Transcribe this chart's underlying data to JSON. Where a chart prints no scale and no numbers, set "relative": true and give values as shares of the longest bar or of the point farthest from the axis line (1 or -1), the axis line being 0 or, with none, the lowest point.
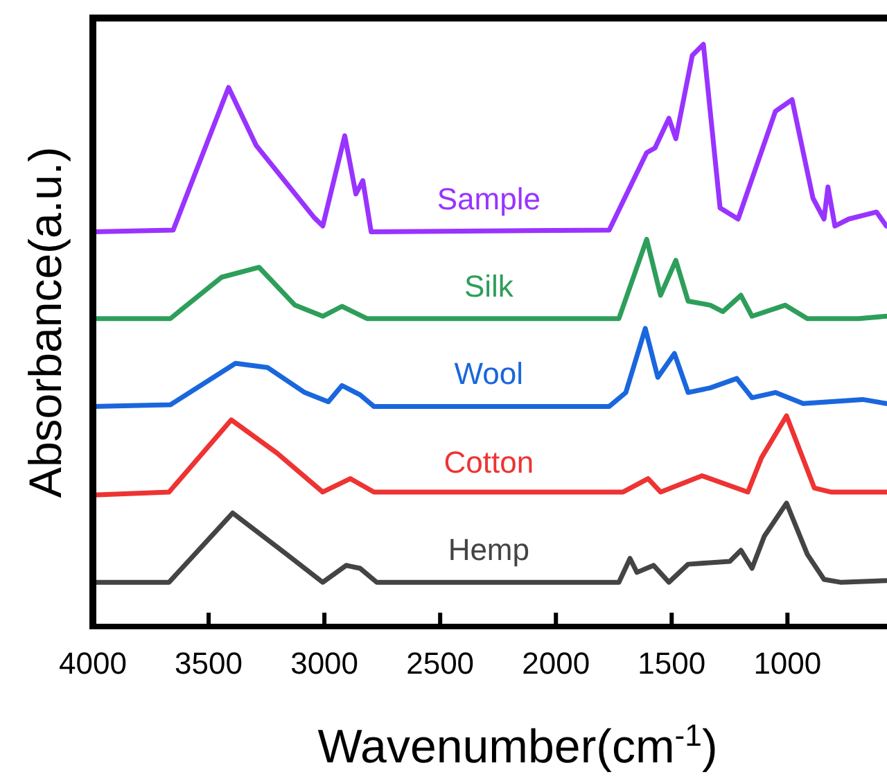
{
  "chart_data": {
    "type": "line",
    "relative": true,
    "xlabel": "Wavenumber(cm$^{-1}$)",
    "ylabel": "Absorbance(a.u.)",
    "xlim": [
      4000,
      570
    ],
    "xticks": [
      4000,
      3500,
      3000,
      2500,
      2000,
      1500,
      1000
    ],
    "grid": false,
    "series": [
      {
        "name": "Sample",
        "color": "#9933ff",
        "x": [
          4000,
          3653,
          3414,
          3294,
          3043,
          3007,
          2912,
          2864,
          2834,
          2798,
          1770,
          1608,
          1572,
          1512,
          1482,
          1411,
          1363,
          1291,
          1213,
          1052,
          980,
          890,
          842,
          825,
          795,
          735,
          615,
          573
        ],
        "values": [
          0.678,
          0.681,
          0.926,
          0.826,
          0.702,
          0.688,
          0.843,
          0.743,
          0.766,
          0.678,
          0.681,
          0.814,
          0.822,
          0.873,
          0.838,
          0.981,
          1.0,
          0.719,
          0.7,
          0.885,
          0.905,
          0.736,
          0.7,
          0.755,
          0.688,
          0.7,
          0.712,
          0.688
        ]
      },
      {
        "name": "Silk",
        "color": "#2e9e5b",
        "x": [
          4000,
          3665,
          3444,
          3282,
          3127,
          3007,
          2924,
          2816,
          1728,
          1608,
          1548,
          1482,
          1429,
          1333,
          1279,
          1201,
          1153,
          1010,
          914,
          693,
          573
        ],
        "values": [
          0.529,
          0.529,
          0.6,
          0.617,
          0.552,
          0.533,
          0.55,
          0.529,
          0.529,
          0.665,
          0.569,
          0.629,
          0.559,
          0.552,
          0.541,
          0.569,
          0.533,
          0.552,
          0.529,
          0.529,
          0.533
        ]
      },
      {
        "name": "Wool",
        "color": "#1a66dd",
        "x": [
          4000,
          3665,
          3384,
          3246,
          3085,
          2983,
          2924,
          2846,
          2786,
          1770,
          1698,
          1614,
          1560,
          1488,
          1429,
          1333,
          1219,
          1153,
          1052,
          932,
          675,
          573
        ],
        "values": [
          0.378,
          0.381,
          0.452,
          0.445,
          0.402,
          0.386,
          0.414,
          0.398,
          0.378,
          0.378,
          0.402,
          0.512,
          0.428,
          0.469,
          0.402,
          0.41,
          0.426,
          0.393,
          0.402,
          0.383,
          0.39,
          0.383
        ]
      },
      {
        "name": "Cotton",
        "color": "#ee3333",
        "x": [
          4000,
          3671,
          3402,
          3205,
          3007,
          2888,
          2786,
          1710,
          1602,
          1548,
          1369,
          1171,
          1112,
          1004,
          884,
          813,
          573
        ],
        "values": [
          0.226,
          0.231,
          0.355,
          0.298,
          0.231,
          0.254,
          0.231,
          0.231,
          0.254,
          0.231,
          0.259,
          0.231,
          0.29,
          0.362,
          0.238,
          0.231,
          0.231
        ]
      },
      {
        "name": "Hemp",
        "color": "#444444",
        "x": [
          4000,
          3671,
          3396,
          3163,
          3007,
          2906,
          2846,
          2774,
          1728,
          1680,
          1650,
          1578,
          1512,
          1429,
          1249,
          1201,
          1153,
          1100,
          1004,
          914,
          842,
          771,
          573
        ],
        "values": [
          0.076,
          0.076,
          0.195,
          0.124,
          0.076,
          0.105,
          0.1,
          0.076,
          0.076,
          0.117,
          0.093,
          0.105,
          0.076,
          0.107,
          0.112,
          0.131,
          0.1,
          0.155,
          0.212,
          0.124,
          0.081,
          0.076,
          0.079
        ]
      }
    ]
  }
}
